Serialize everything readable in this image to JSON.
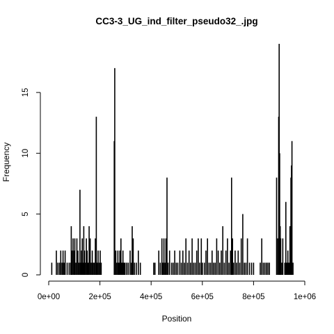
{
  "chart_data": {
    "type": "bar",
    "title": "CC3-3_UG_ind_filter_pseudo32_.jpg",
    "xlabel": "Position",
    "ylabel": "Frequency",
    "xlim": [
      0,
      1000000
    ],
    "ylim": [
      0,
      19
    ],
    "x_ticks": [
      {
        "value": 0,
        "label": "0e+00"
      },
      {
        "value": 200000,
        "label": "2e+05"
      },
      {
        "value": 400000,
        "label": "4e+05"
      },
      {
        "value": 600000,
        "label": "6e+05"
      },
      {
        "value": 800000,
        "label": "8e+05"
      },
      {
        "value": 1000000,
        "label": "1e+06"
      }
    ],
    "y_ticks": [
      {
        "value": 0,
        "label": "0"
      },
      {
        "value": 5,
        "label": "5"
      },
      {
        "value": 10,
        "label": "10"
      },
      {
        "value": 15,
        "label": "15"
      }
    ],
    "grid": false,
    "bar_color": "#000000",
    "points": [
      [
        12000,
        1
      ],
      [
        30000,
        2
      ],
      [
        36000,
        1
      ],
      [
        42000,
        1
      ],
      [
        47000,
        2
      ],
      [
        52000,
        1
      ],
      [
        56000,
        2
      ],
      [
        60000,
        1
      ],
      [
        64000,
        2
      ],
      [
        72000,
        1
      ],
      [
        80000,
        1
      ],
      [
        86000,
        1
      ],
      [
        88000,
        4
      ],
      [
        91000,
        2
      ],
      [
        95000,
        3
      ],
      [
        99000,
        2
      ],
      [
        102000,
        3
      ],
      [
        106000,
        1
      ],
      [
        110000,
        3
      ],
      [
        114000,
        2
      ],
      [
        118000,
        1
      ],
      [
        122000,
        7
      ],
      [
        125000,
        1
      ],
      [
        128000,
        2
      ],
      [
        131000,
        3
      ],
      [
        134000,
        1
      ],
      [
        137000,
        4
      ],
      [
        140000,
        2
      ],
      [
        143000,
        1
      ],
      [
        147000,
        3
      ],
      [
        150000,
        2
      ],
      [
        154000,
        1
      ],
      [
        158000,
        4
      ],
      [
        162000,
        3
      ],
      [
        166000,
        1
      ],
      [
        170000,
        2
      ],
      [
        174000,
        1
      ],
      [
        178000,
        1
      ],
      [
        182000,
        3
      ],
      [
        186000,
        13
      ],
      [
        189000,
        1
      ],
      [
        193000,
        2
      ],
      [
        197000,
        1
      ],
      [
        201000,
        2
      ],
      [
        205000,
        1
      ],
      [
        256000,
        11
      ],
      [
        258000,
        17
      ],
      [
        262000,
        2
      ],
      [
        266000,
        1
      ],
      [
        270000,
        2
      ],
      [
        274000,
        1
      ],
      [
        278000,
        2
      ],
      [
        282000,
        3
      ],
      [
        286000,
        1
      ],
      [
        290000,
        2
      ],
      [
        294000,
        1
      ],
      [
        298000,
        1
      ],
      [
        305000,
        1
      ],
      [
        311000,
        1
      ],
      [
        318000,
        2
      ],
      [
        323000,
        1
      ],
      [
        326000,
        4
      ],
      [
        330000,
        3
      ],
      [
        335000,
        1
      ],
      [
        342000,
        1
      ],
      [
        350000,
        2
      ],
      [
        358000,
        1
      ],
      [
        410000,
        1
      ],
      [
        415000,
        1
      ],
      [
        430000,
        2
      ],
      [
        436000,
        1
      ],
      [
        442000,
        3
      ],
      [
        446000,
        1
      ],
      [
        450000,
        3
      ],
      [
        454000,
        1
      ],
      [
        458000,
        3
      ],
      [
        462000,
        8
      ],
      [
        466000,
        1
      ],
      [
        472000,
        2
      ],
      [
        480000,
        1
      ],
      [
        486000,
        1
      ],
      [
        492000,
        2
      ],
      [
        498000,
        1
      ],
      [
        504000,
        1
      ],
      [
        512000,
        2
      ],
      [
        518000,
        1
      ],
      [
        524000,
        2
      ],
      [
        530000,
        1
      ],
      [
        536000,
        3
      ],
      [
        542000,
        1
      ],
      [
        548000,
        2
      ],
      [
        554000,
        1
      ],
      [
        560000,
        3
      ],
      [
        566000,
        1
      ],
      [
        572000,
        1
      ],
      [
        578000,
        2
      ],
      [
        584000,
        3
      ],
      [
        590000,
        1
      ],
      [
        596000,
        3
      ],
      [
        600000,
        1
      ],
      [
        608000,
        1
      ],
      [
        614000,
        2
      ],
      [
        620000,
        3
      ],
      [
        626000,
        1
      ],
      [
        632000,
        1
      ],
      [
        638000,
        2
      ],
      [
        644000,
        1
      ],
      [
        650000,
        1
      ],
      [
        656000,
        3
      ],
      [
        662000,
        2
      ],
      [
        668000,
        1
      ],
      [
        674000,
        2
      ],
      [
        680000,
        4
      ],
      [
        686000,
        1
      ],
      [
        692000,
        2
      ],
      [
        698000,
        3
      ],
      [
        704000,
        1
      ],
      [
        710000,
        2
      ],
      [
        714000,
        8
      ],
      [
        718000,
        3
      ],
      [
        722000,
        1
      ],
      [
        728000,
        2
      ],
      [
        734000,
        1
      ],
      [
        740000,
        2
      ],
      [
        746000,
        1
      ],
      [
        752000,
        3
      ],
      [
        758000,
        5
      ],
      [
        764000,
        1
      ],
      [
        770000,
        1
      ],
      [
        776000,
        3
      ],
      [
        784000,
        1
      ],
      [
        792000,
        1
      ],
      [
        800000,
        1
      ],
      [
        826000,
        1
      ],
      [
        832000,
        3
      ],
      [
        838000,
        1
      ],
      [
        844000,
        1
      ],
      [
        850000,
        1
      ],
      [
        856000,
        1
      ],
      [
        862000,
        1
      ],
      [
        890000,
        8
      ],
      [
        894000,
        3
      ],
      [
        898000,
        13
      ],
      [
        900000,
        19
      ],
      [
        902000,
        10
      ],
      [
        904000,
        4
      ],
      [
        906000,
        3
      ],
      [
        910000,
        1
      ],
      [
        914000,
        3
      ],
      [
        922000,
        1
      ],
      [
        926000,
        6
      ],
      [
        930000,
        1
      ],
      [
        934000,
        2
      ],
      [
        938000,
        1
      ],
      [
        942000,
        4
      ],
      [
        946000,
        8
      ],
      [
        948000,
        9
      ],
      [
        950000,
        11
      ],
      [
        954000,
        1
      ]
    ]
  }
}
